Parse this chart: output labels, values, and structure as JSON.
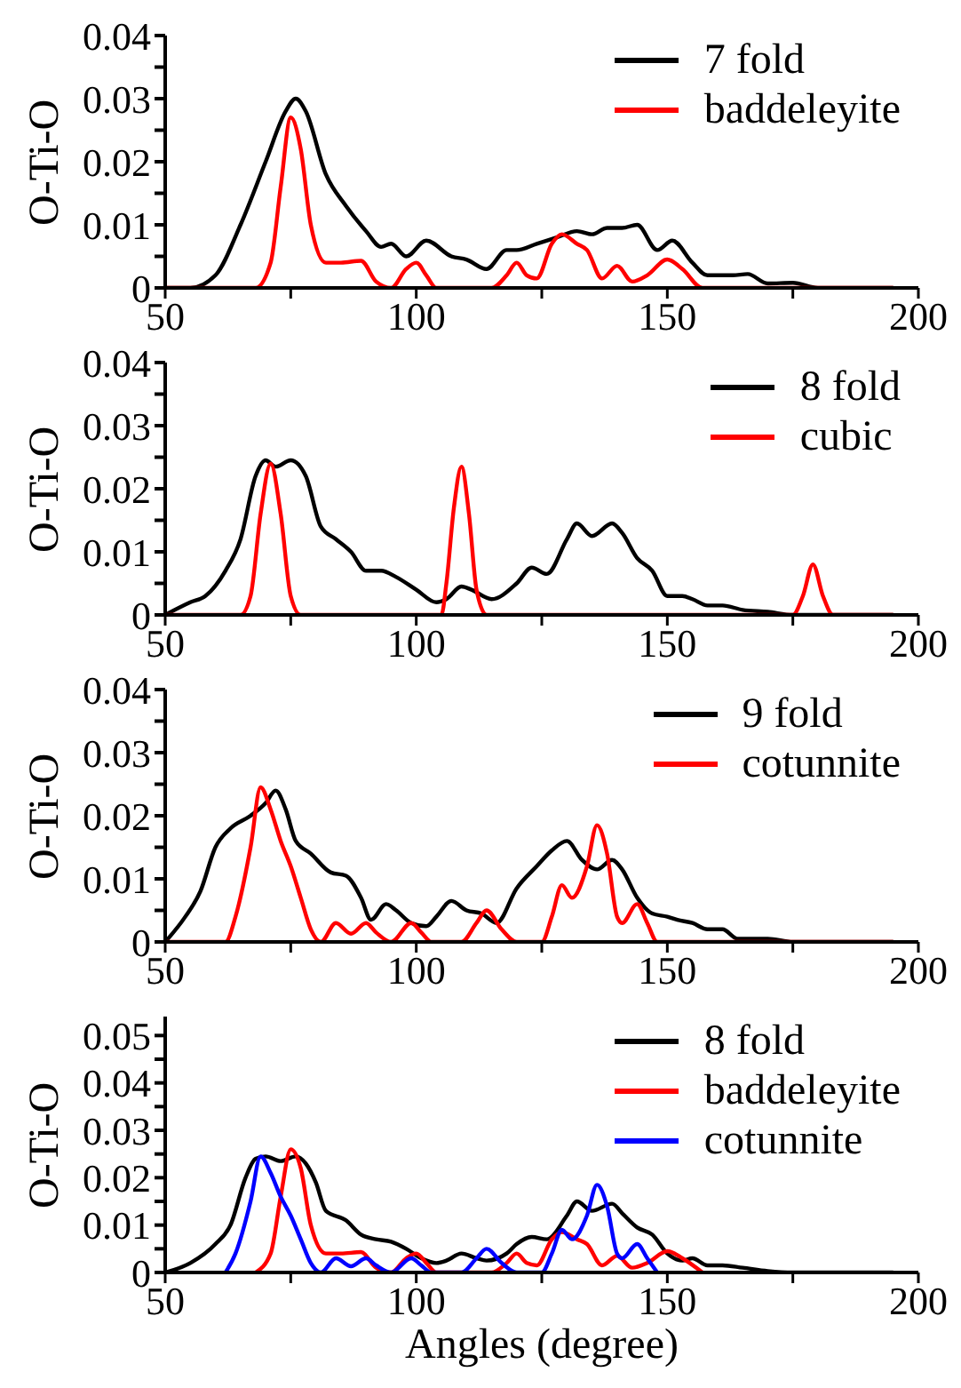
{
  "chart_data": [
    {
      "type": "line",
      "ylabel": "O-Ti-O",
      "xlim": [
        50,
        200
      ],
      "xticks": [
        50,
        {
          "value": 75,
          "label": null
        },
        100,
        {
          "value": 125,
          "label": null
        },
        150,
        {
          "value": 175,
          "label": null
        },
        200
      ],
      "ylim": [
        0,
        0.04
      ],
      "yticks": [
        0,
        {
          "value": 0.005,
          "label": null
        },
        0.01,
        {
          "value": 0.015,
          "label": null
        },
        0.02,
        {
          "value": 0.025,
          "label": null
        },
        0.03,
        {
          "value": 0.035,
          "label": null
        },
        0.04
      ],
      "legend": "top right",
      "grid": false,
      "series": [
        {
          "name": "7 fold",
          "color": "#000000",
          "x": [
            50,
            55,
            60,
            65,
            70,
            74,
            76,
            78,
            82,
            86,
            90,
            93,
            95,
            98,
            102,
            107,
            110,
            114,
            118,
            120,
            124,
            128,
            132,
            135,
            138,
            141,
            144,
            148,
            151,
            155,
            158,
            163,
            166,
            170,
            175,
            180,
            195
          ],
          "values": [
            0,
            0,
            0.002,
            0.01,
            0.02,
            0.028,
            0.03,
            0.028,
            0.018,
            0.013,
            0.009,
            0.0065,
            0.007,
            0.005,
            0.0075,
            0.005,
            0.0045,
            0.003,
            0.006,
            0.006,
            0.007,
            0.008,
            0.009,
            0.0085,
            0.0095,
            0.0095,
            0.01,
            0.006,
            0.0075,
            0.004,
            0.002,
            0.002,
            0.0022,
            0.0007,
            0.0008,
            0,
            0
          ]
        },
        {
          "name": "baddeleyite",
          "color": "#ff0000",
          "x": [
            50,
            68,
            71,
            73,
            75,
            77,
            79,
            82,
            85,
            89,
            92,
            95,
            98,
            100,
            102,
            104,
            115,
            118,
            120,
            122,
            124,
            127,
            129,
            132,
            134,
            137,
            140,
            143,
            146,
            150,
            153,
            157,
            195
          ],
          "values": [
            0,
            0,
            0.004,
            0.016,
            0.027,
            0.022,
            0.01,
            0.004,
            0.004,
            0.0043,
            0.001,
            0,
            0.003,
            0.004,
            0.002,
            0,
            0,
            0.002,
            0.004,
            0.002,
            0.0015,
            0.007,
            0.0085,
            0.007,
            0.006,
            0.0015,
            0.0035,
            0.001,
            0.002,
            0.0045,
            0.003,
            0,
            0
          ]
        }
      ]
    },
    {
      "type": "line",
      "ylabel": "O-Ti-O",
      "xlim": [
        50,
        200
      ],
      "xticks": [
        50,
        {
          "value": 75,
          "label": null
        },
        100,
        {
          "value": 125,
          "label": null
        },
        150,
        {
          "value": 175,
          "label": null
        },
        200
      ],
      "ylim": [
        0,
        0.04
      ],
      "yticks": [
        0,
        {
          "value": 0.005,
          "label": null
        },
        0.01,
        {
          "value": 0.015,
          "label": null
        },
        0.02,
        {
          "value": 0.025,
          "label": null
        },
        0.03,
        {
          "value": 0.035,
          "label": null
        },
        0.04
      ],
      "legend": "top right",
      "grid": false,
      "series": [
        {
          "name": "8 fold",
          "color": "#000000",
          "x": [
            50,
            55,
            58,
            62,
            65,
            68,
            70,
            72,
            75,
            78,
            81,
            84,
            87,
            90,
            93,
            96,
            100,
            104,
            106,
            109,
            111,
            115,
            120,
            123,
            126,
            130,
            132,
            135,
            139,
            141,
            144,
            147,
            150,
            153,
            155,
            158,
            161,
            165,
            170,
            175,
            195
          ],
          "values": [
            0,
            0.002,
            0.003,
            0.007,
            0.012,
            0.022,
            0.0245,
            0.0235,
            0.0245,
            0.022,
            0.014,
            0.012,
            0.01,
            0.007,
            0.007,
            0.006,
            0.004,
            0.002,
            0.0025,
            0.0045,
            0.004,
            0.0025,
            0.005,
            0.0075,
            0.0065,
            0.012,
            0.0145,
            0.0125,
            0.0145,
            0.013,
            0.009,
            0.007,
            0.003,
            0.003,
            0.0025,
            0.0015,
            0.0015,
            0.0008,
            0.0005,
            0,
            0
          ]
        },
        {
          "name": "cubic",
          "color": "#ff0000",
          "x": [
            50,
            65,
            67,
            69,
            71,
            73,
            75,
            77,
            105,
            106,
            107.5,
            109,
            110.5,
            112,
            114,
            175,
            177,
            179,
            181,
            183,
            195
          ],
          "values": [
            0,
            0,
            0.003,
            0.016,
            0.024,
            0.016,
            0.003,
            0,
            0,
            0.005,
            0.017,
            0.0235,
            0.016,
            0.004,
            0,
            0,
            0.003,
            0.008,
            0.003,
            0,
            0
          ]
        }
      ]
    },
    {
      "type": "line",
      "ylabel": "O-Ti-O",
      "xlim": [
        50,
        200
      ],
      "xticks": [
        50,
        {
          "value": 75,
          "label": null
        },
        100,
        {
          "value": 125,
          "label": null
        },
        150,
        {
          "value": 175,
          "label": null
        },
        200
      ],
      "ylim": [
        0,
        0.04
      ],
      "yticks": [
        0,
        {
          "value": 0.005,
          "label": null
        },
        0.01,
        {
          "value": 0.015,
          "label": null
        },
        0.02,
        {
          "value": 0.025,
          "label": null
        },
        0.03,
        {
          "value": 0.035,
          "label": null
        },
        0.04
      ],
      "legend": "top right",
      "grid": false,
      "series": [
        {
          "name": "9 fold",
          "color": "#000000",
          "x": [
            50,
            54,
            57,
            60,
            63,
            67,
            70,
            72,
            74,
            76,
            79,
            83,
            86,
            89,
            91,
            94,
            96,
            99,
            102,
            104,
            107,
            110,
            113,
            116,
            120,
            124,
            127,
            130,
            133,
            136,
            139,
            141,
            144,
            147,
            150,
            152,
            155,
            158,
            161,
            164,
            170,
            175,
            195
          ],
          "values": [
            0,
            0.004,
            0.008,
            0.015,
            0.018,
            0.02,
            0.022,
            0.024,
            0.021,
            0.016,
            0.014,
            0.011,
            0.0105,
            0.007,
            0.0035,
            0.006,
            0.005,
            0.003,
            0.0025,
            0.004,
            0.0065,
            0.005,
            0.0045,
            0.003,
            0.0085,
            0.012,
            0.0145,
            0.016,
            0.013,
            0.0115,
            0.013,
            0.0115,
            0.007,
            0.0045,
            0.004,
            0.0035,
            0.003,
            0.002,
            0.002,
            0.0005,
            0.0005,
            0,
            0
          ]
        },
        {
          "name": "cotunnite",
          "color": "#ff0000",
          "x": [
            50,
            62,
            64,
            67,
            69,
            71,
            73,
            75,
            77,
            79,
            81,
            84,
            87,
            90,
            92,
            95,
            99,
            101,
            103,
            109,
            112,
            114,
            117,
            120,
            125,
            127,
            129,
            131,
            134,
            136,
            138,
            140,
            141,
            144,
            146,
            148,
            195
          ],
          "values": [
            0,
            0,
            0.004,
            0.015,
            0.0245,
            0.021,
            0.016,
            0.012,
            0.007,
            0.002,
            0,
            0.003,
            0.0013,
            0.003,
            0.0015,
            0,
            0.003,
            0.0015,
            0,
            0,
            0.003,
            0.005,
            0.002,
            0,
            0,
            0.004,
            0.009,
            0.007,
            0.012,
            0.0185,
            0.014,
            0.004,
            0.003,
            0.006,
            0.003,
            0,
            0
          ]
        }
      ]
    },
    {
      "type": "line",
      "xlabel": "Angles (degree)",
      "ylabel": "O-Ti-O",
      "xlim": [
        50,
        200
      ],
      "xticks": [
        50,
        {
          "value": 75,
          "label": null
        },
        100,
        {
          "value": 125,
          "label": null
        },
        150,
        {
          "value": 175,
          "label": null
        },
        200
      ],
      "ylim": [
        0,
        0.054
      ],
      "yticks": [
        0,
        {
          "value": 0.005,
          "label": null
        },
        0.01,
        {
          "value": 0.015,
          "label": null
        },
        0.02,
        {
          "value": 0.025,
          "label": null
        },
        0.03,
        {
          "value": 0.035,
          "label": null
        },
        0.04,
        {
          "value": 0.045,
          "label": null
        },
        0.05
      ],
      "legend": "top right",
      "grid": false,
      "series": [
        {
          "name": "8 fold",
          "color": "#000000",
          "x": [
            50,
            55,
            60,
            63,
            66,
            68,
            70,
            73,
            76,
            78,
            80,
            82,
            86,
            89,
            92,
            95,
            98,
            101,
            104,
            106,
            109,
            112,
            114,
            118,
            120,
            123,
            126,
            130,
            132,
            135,
            139,
            141,
            144,
            147,
            150,
            153,
            155,
            158,
            161,
            165,
            170,
            175,
            195
          ],
          "values": [
            0,
            0.002,
            0.006,
            0.01,
            0.02,
            0.024,
            0.0245,
            0.0235,
            0.0245,
            0.023,
            0.019,
            0.013,
            0.011,
            0.008,
            0.007,
            0.0065,
            0.005,
            0.003,
            0.002,
            0.0025,
            0.004,
            0.003,
            0.0025,
            0.004,
            0.006,
            0.0075,
            0.007,
            0.012,
            0.015,
            0.013,
            0.0145,
            0.0125,
            0.0095,
            0.008,
            0.004,
            0.0025,
            0.003,
            0.0015,
            0.0015,
            0.001,
            0.0003,
            0,
            0
          ]
        },
        {
          "name": "baddeleyite",
          "color": "#ff0000",
          "x": [
            68,
            71,
            73,
            75,
            77,
            79,
            82,
            85,
            89,
            92,
            95,
            98,
            100,
            102,
            104,
            115,
            118,
            120,
            122,
            124,
            127,
            129,
            132,
            134,
            137,
            140,
            143,
            146,
            150,
            153,
            157
          ],
          "values": [
            0,
            0.004,
            0.016,
            0.026,
            0.022,
            0.01,
            0.004,
            0.004,
            0.0043,
            0.001,
            0,
            0.003,
            0.004,
            0.002,
            0,
            0,
            0.002,
            0.004,
            0.002,
            0.0015,
            0.007,
            0.0085,
            0.007,
            0.006,
            0.0015,
            0.0035,
            0.001,
            0.002,
            0.0045,
            0.003,
            0
          ]
        },
        {
          "name": "cotunnite",
          "color": "#0000ff",
          "x": [
            62,
            64,
            67,
            69,
            71,
            73,
            75,
            77,
            79,
            81,
            84,
            87,
            90,
            92,
            95,
            99,
            101,
            103,
            109,
            112,
            114,
            117,
            120,
            125,
            127,
            129,
            131,
            134,
            136,
            138,
            140,
            141,
            144,
            146,
            148
          ],
          "values": [
            0,
            0.004,
            0.015,
            0.0245,
            0.021,
            0.016,
            0.012,
            0.007,
            0.002,
            0,
            0.003,
            0.0013,
            0.003,
            0.0015,
            0,
            0.003,
            0.0015,
            0,
            0,
            0.003,
            0.005,
            0.002,
            0,
            0,
            0.004,
            0.009,
            0.007,
            0.012,
            0.0185,
            0.014,
            0.004,
            0.003,
            0.006,
            0.003,
            0
          ]
        }
      ]
    }
  ]
}
